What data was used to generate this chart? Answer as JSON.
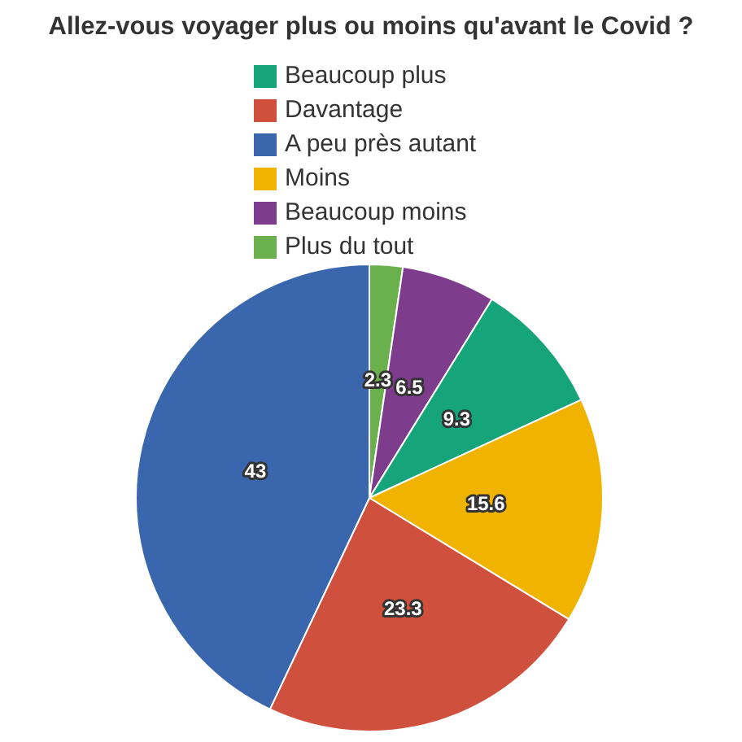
{
  "chart_data": {
    "type": "pie",
    "title": "Allez-vous voyager plus ou moins qu'avant le Covid ?",
    "categories": [
      "Plus du tout",
      "Beaucoup moins",
      "Beaucoup plus",
      "Moins",
      "Davantage",
      "A peu près autant"
    ],
    "values": [
      2.3,
      6.5,
      9.3,
      15.6,
      23.3,
      43
    ],
    "colors": [
      "#6ab04c",
      "#7d3c8c",
      "#16a57b",
      "#f0b400",
      "#cf513d",
      "#3a66ae"
    ],
    "legend": "top",
    "data_labels": true
  }
}
